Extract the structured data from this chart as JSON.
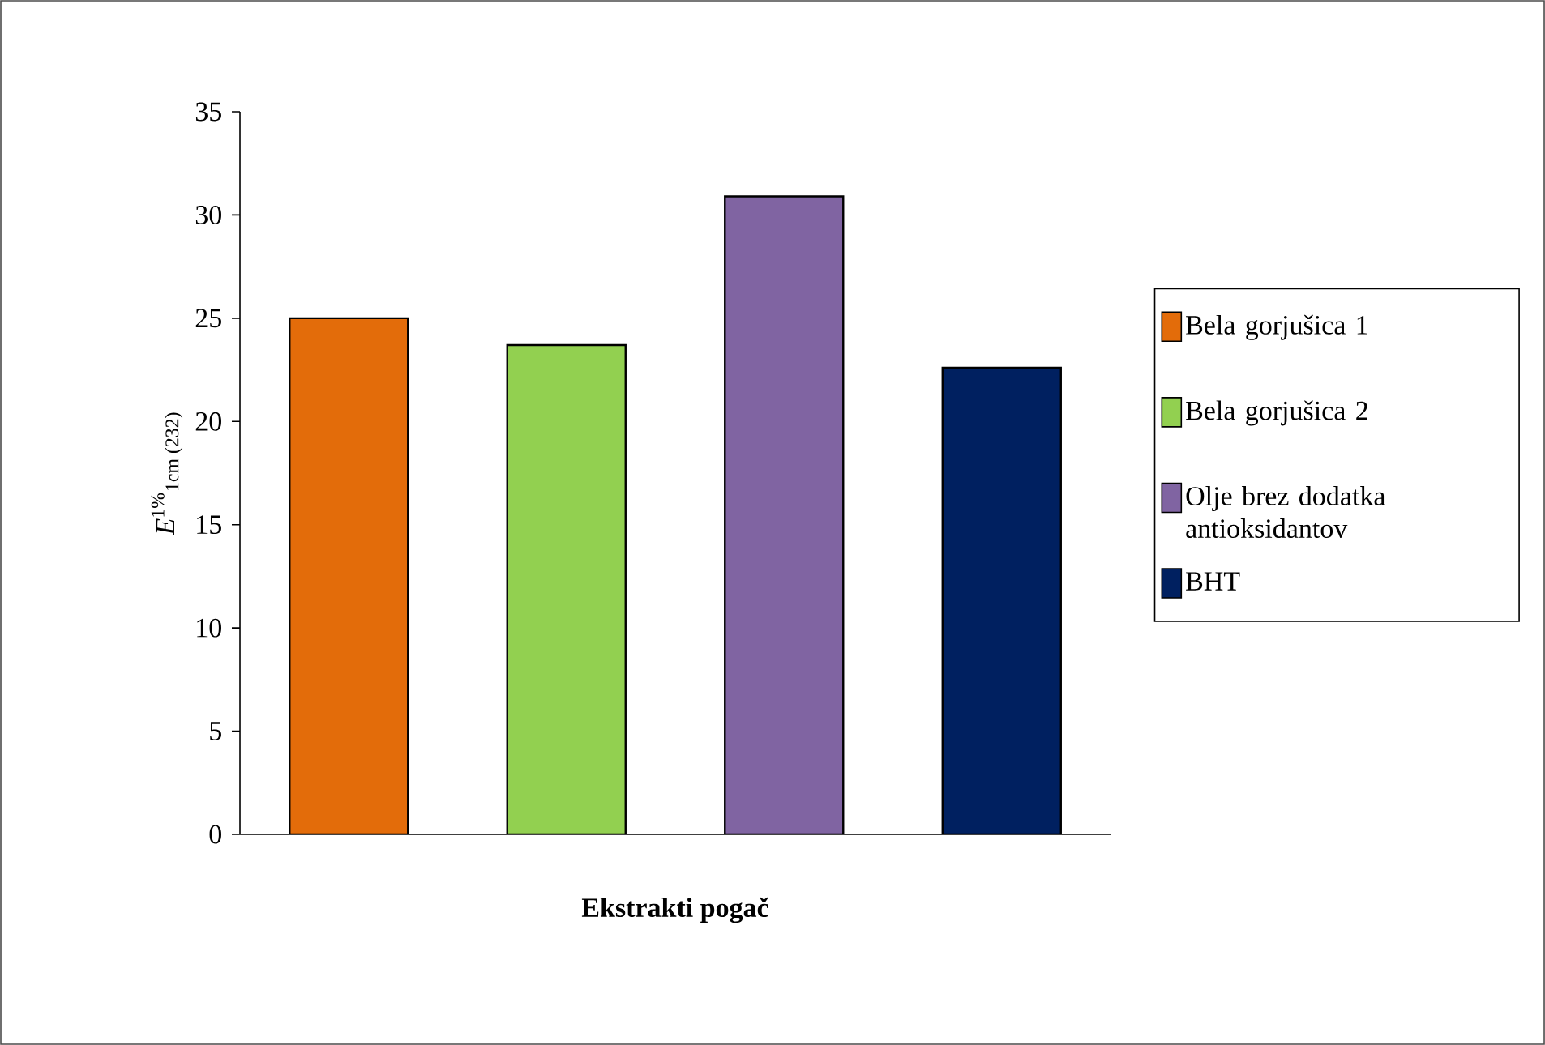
{
  "chart_data": {
    "type": "bar",
    "xlabel": "**Ekstrakti pogač**",
    "ylabel": "*E*$^{1%}$$_{1cm (232)}$",
    "categories": [
      null,
      null,
      null,
      null
    ],
    "series": [
      {
        "name": "Bela gorjušica 1",
        "color": "#e36c0a",
        "values": [
          25.0,
          null,
          null,
          null
        ]
      },
      {
        "name": "Bela gorjušica 2",
        "color": "#92d050",
        "values": [
          null,
          23.7,
          null,
          null
        ]
      },
      {
        "name": "Olje brez dodatka antioksidantov",
        "color": "#8064a2",
        "values": [
          null,
          null,
          30.9,
          null
        ]
      },
      {
        "name": "BHT",
        "color": "#002060",
        "values": [
          null,
          null,
          null,
          22.6
        ]
      }
    ],
    "ylim": [
      0,
      35
    ],
    "yticks": [
      0,
      5,
      10,
      15,
      20,
      25,
      30,
      35
    ],
    "legend": "right",
    "tick_labels": "y"
  }
}
